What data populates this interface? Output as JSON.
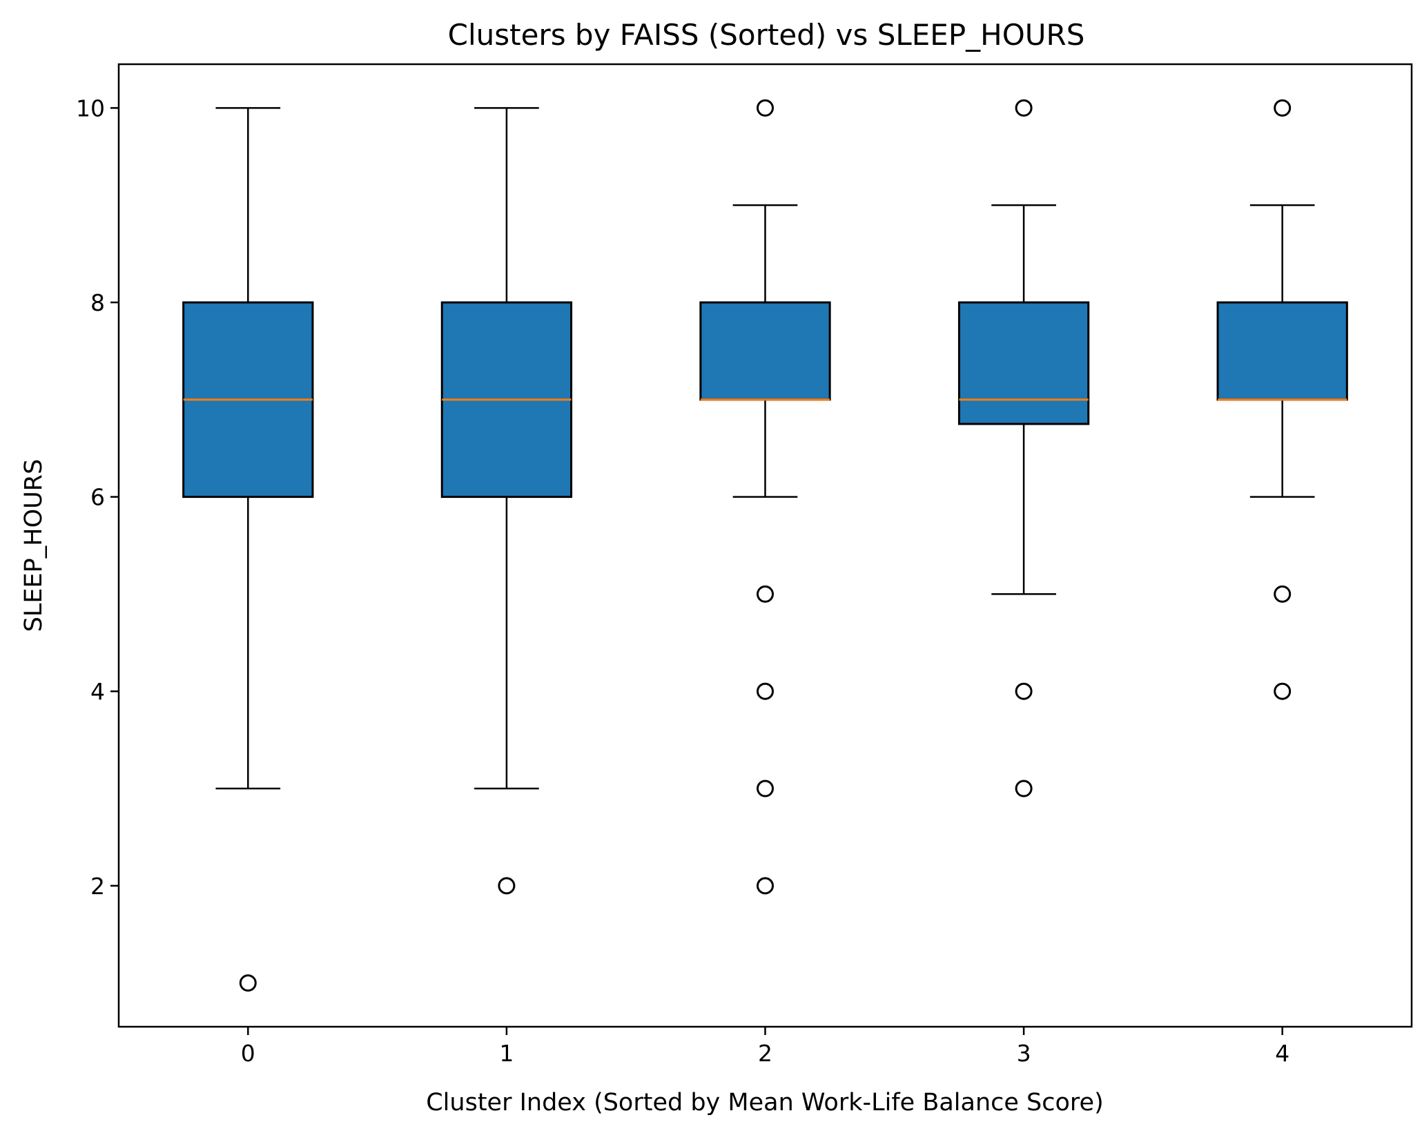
{
  "chart_data": {
    "type": "box",
    "title": "Clusters by FAISS (Sorted) vs SLEEP_HOURS",
    "xlabel": "Cluster Index (Sorted by Mean Work-Life Balance Score)",
    "ylabel": "SLEEP_HOURS",
    "x_range": [
      -0.5,
      4.5
    ],
    "y_range": [
      0.55,
      10.45
    ],
    "y_ticks": [
      2,
      4,
      6,
      8,
      10
    ],
    "grid": false,
    "legend": "none",
    "colors": {
      "box_fill": "#1f77b4",
      "median": "#ff7f0e",
      "edge": "#000000"
    },
    "boxes": [
      {
        "category": "0",
        "whisker_low": 3,
        "q1": 6,
        "median": 7,
        "q3": 8,
        "whisker_high": 10,
        "outliers": [
          1
        ]
      },
      {
        "category": "1",
        "whisker_low": 3,
        "q1": 6,
        "median": 7,
        "q3": 8,
        "whisker_high": 10,
        "outliers": [
          2
        ]
      },
      {
        "category": "2",
        "whisker_low": 6,
        "q1": 7,
        "median": 7,
        "q3": 8,
        "whisker_high": 9,
        "outliers": [
          10,
          5,
          4,
          3,
          2
        ]
      },
      {
        "category": "3",
        "whisker_low": 5,
        "q1": 6.75,
        "median": 7,
        "q3": 8,
        "whisker_high": 9,
        "outliers": [
          10,
          4,
          3
        ]
      },
      {
        "category": "4",
        "whisker_low": 6,
        "q1": 7,
        "median": 7,
        "q3": 8,
        "whisker_high": 9,
        "outliers": [
          10,
          5,
          4
        ]
      }
    ]
  }
}
